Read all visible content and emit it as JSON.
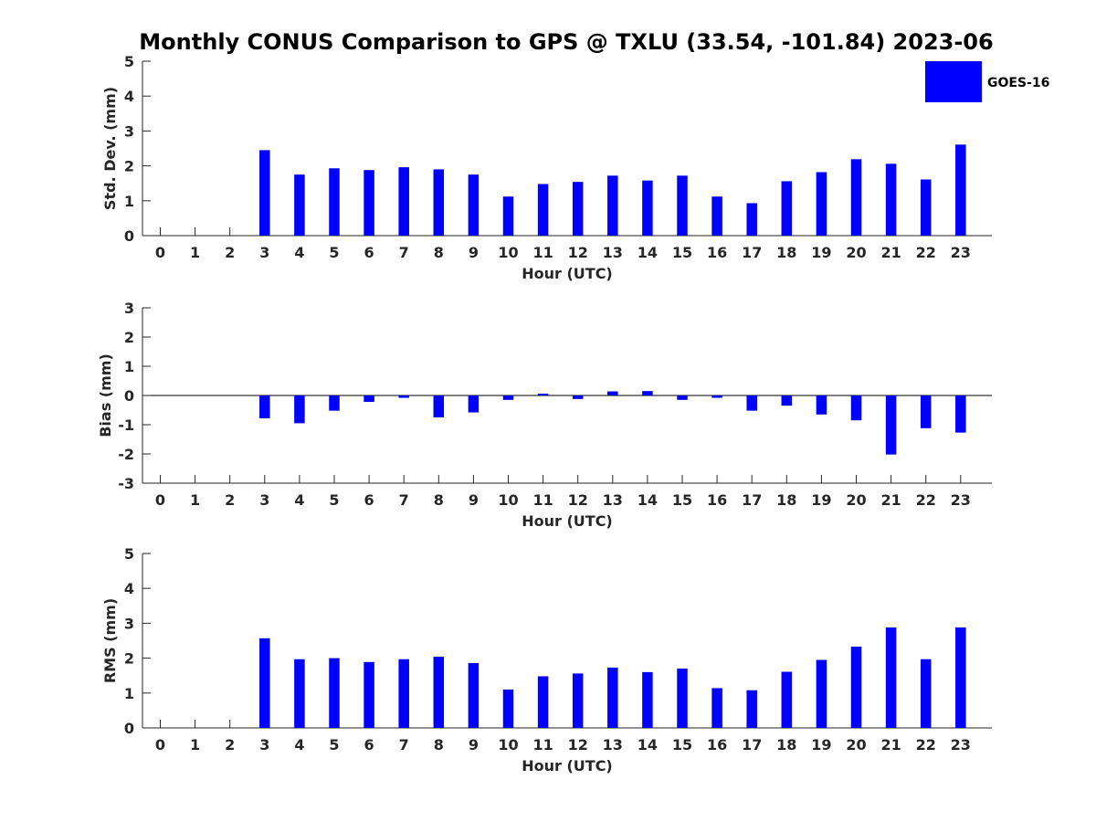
{
  "title": "Monthly CONUS Comparison to GPS @ TXLU (33.54, -101.84) 2023-06",
  "legend": {
    "label": "GOES-16",
    "color": "#0000ff"
  },
  "chart_data": [
    {
      "type": "bar",
      "title": "",
      "xlabel": "Hour (UTC)",
      "ylabel": "Std. Dev. (mm)",
      "ylim": [
        0,
        5
      ],
      "yticks": [
        "0",
        "1",
        "2",
        "3",
        "4",
        "5"
      ],
      "categories": [
        "0",
        "1",
        "2",
        "3",
        "4",
        "5",
        "6",
        "7",
        "8",
        "9",
        "10",
        "11",
        "12",
        "13",
        "14",
        "15",
        "16",
        "17",
        "18",
        "19",
        "20",
        "21",
        "22",
        "23"
      ],
      "series": [
        {
          "name": "GOES-16",
          "color": "#0000ff",
          "values": [
            null,
            null,
            null,
            2.45,
            1.75,
            1.93,
            1.88,
            1.96,
            1.9,
            1.75,
            1.12,
            1.48,
            1.54,
            1.72,
            1.58,
            1.72,
            1.12,
            0.93,
            1.56,
            1.82,
            2.19,
            2.06,
            1.61,
            2.61
          ]
        }
      ]
    },
    {
      "type": "bar",
      "title": "",
      "xlabel": "Hour (UTC)",
      "ylabel": "Bias (mm)",
      "ylim": [
        -3,
        3
      ],
      "yticks": [
        "-3",
        "-2",
        "-1",
        "0",
        "1",
        "2",
        "3"
      ],
      "categories": [
        "0",
        "1",
        "2",
        "3",
        "4",
        "5",
        "6",
        "7",
        "8",
        "9",
        "10",
        "11",
        "12",
        "13",
        "14",
        "15",
        "16",
        "17",
        "18",
        "19",
        "20",
        "21",
        "22",
        "23"
      ],
      "series": [
        {
          "name": "GOES-16",
          "color": "#0000ff",
          "values": [
            null,
            null,
            null,
            -0.78,
            -0.95,
            -0.52,
            -0.22,
            -0.08,
            -0.75,
            -0.58,
            -0.15,
            0.06,
            -0.12,
            0.14,
            0.15,
            -0.15,
            -0.08,
            -0.52,
            -0.35,
            -0.65,
            -0.85,
            -2.02,
            -1.12,
            -1.27
          ]
        }
      ]
    },
    {
      "type": "bar",
      "title": "",
      "xlabel": "Hour (UTC)",
      "ylabel": "RMS (mm)",
      "ylim": [
        0,
        5
      ],
      "yticks": [
        "0",
        "1",
        "2",
        "3",
        "4",
        "5"
      ],
      "categories": [
        "0",
        "1",
        "2",
        "3",
        "4",
        "5",
        "6",
        "7",
        "8",
        "9",
        "10",
        "11",
        "12",
        "13",
        "14",
        "15",
        "16",
        "17",
        "18",
        "19",
        "20",
        "21",
        "22",
        "23"
      ],
      "series": [
        {
          "name": "GOES-16",
          "color": "#0000ff",
          "values": [
            null,
            null,
            null,
            2.57,
            1.97,
            2.0,
            1.89,
            1.97,
            2.04,
            1.86,
            1.1,
            1.48,
            1.56,
            1.73,
            1.6,
            1.7,
            1.14,
            1.08,
            1.61,
            1.95,
            2.33,
            2.88,
            1.97,
            2.88
          ]
        }
      ]
    }
  ]
}
